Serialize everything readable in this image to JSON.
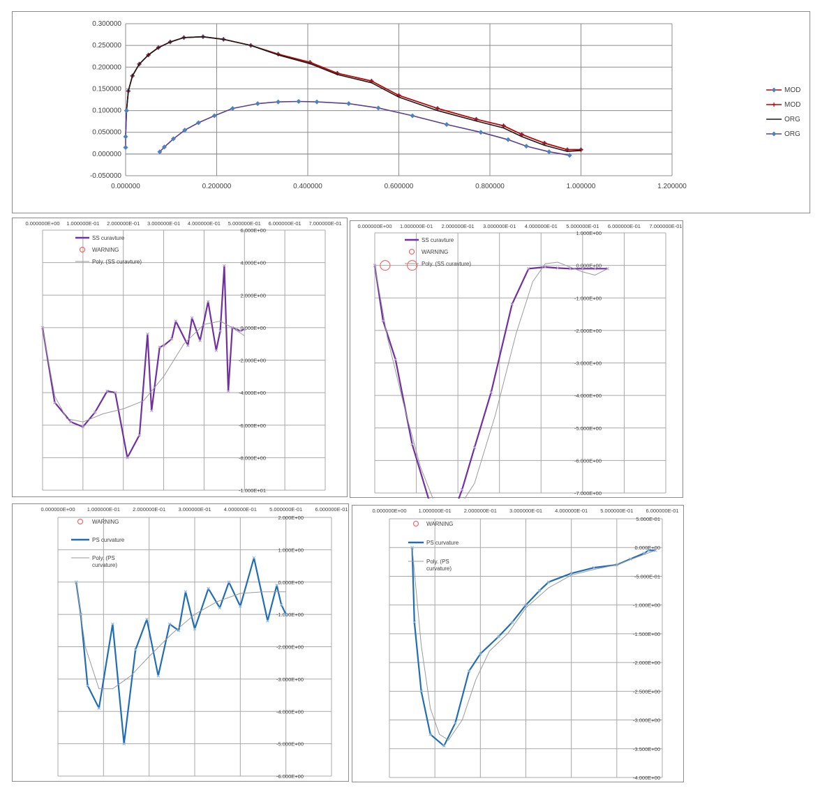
{
  "chart_data": [
    {
      "type": "line",
      "xlim": [
        0,
        1.2
      ],
      "ylim": [
        -0.05,
        0.3
      ],
      "x_ticks": [
        "0.000000",
        "0.200000",
        "0.400000",
        "0.600000",
        "0.800000",
        "1.000000",
        "1.200000"
      ],
      "y_ticks": [
        "0.300000",
        "0.250000",
        "0.200000",
        "0.150000",
        "0.100000",
        "0.050000",
        "0.000000",
        "-0.050000"
      ],
      "legend_position": "right",
      "grid": true,
      "series": [
        {
          "name": "MOD",
          "color": "#c00000",
          "marker": "diamond",
          "marker_color": "#4f81bd",
          "x": [
            0.002,
            0.006,
            0.015,
            0.03,
            0.05,
            0.072,
            0.098,
            0.128,
            0.17,
            0.215,
            0.275,
            0.335,
            0.405,
            0.465,
            0.54,
            0.6,
            0.685,
            0.77,
            0.83,
            0.87,
            0.92,
            0.97,
            1.0
          ],
          "y": [
            0.1,
            0.145,
            0.18,
            0.207,
            0.228,
            0.245,
            0.258,
            0.268,
            0.27,
            0.264,
            0.25,
            0.23,
            0.211,
            0.186,
            0.168,
            0.135,
            0.105,
            0.08,
            0.065,
            0.045,
            0.025,
            0.01,
            0.01
          ]
        },
        {
          "name": "MOD",
          "color": "#c00000",
          "marker": "plus",
          "marker_color": "#c00000",
          "x": [
            0.002,
            0.006,
            0.015,
            0.03,
            0.05,
            0.072,
            0.098,
            0.128,
            0.17,
            0.215,
            0.275,
            0.335,
            0.405,
            0.465,
            0.54,
            0.6,
            0.685,
            0.77,
            0.83,
            0.87,
            0.92,
            0.97,
            1.0
          ],
          "y": [
            0.1,
            0.145,
            0.18,
            0.207,
            0.228,
            0.245,
            0.258,
            0.268,
            0.27,
            0.264,
            0.25,
            0.23,
            0.211,
            0.186,
            0.168,
            0.135,
            0.105,
            0.08,
            0.065,
            0.045,
            0.025,
            0.01,
            0.01
          ]
        },
        {
          "name": "ORG",
          "color": "#1a1a1a",
          "marker": "none",
          "marker_color": "#1a1a1a",
          "x": [
            0.0,
            0.002,
            0.006,
            0.015,
            0.03,
            0.05,
            0.072,
            0.098,
            0.128,
            0.17,
            0.215,
            0.275,
            0.335,
            0.405,
            0.465,
            0.54,
            0.6,
            0.685,
            0.77,
            0.83,
            0.87,
            0.92,
            0.97,
            1.0
          ],
          "y": [
            0.04,
            0.1,
            0.145,
            0.18,
            0.207,
            0.228,
            0.245,
            0.258,
            0.268,
            0.27,
            0.264,
            0.25,
            0.228,
            0.208,
            0.183,
            0.164,
            0.131,
            0.1,
            0.076,
            0.06,
            0.04,
            0.02,
            0.006,
            0.008
          ]
        },
        {
          "name": "ORG",
          "color": "#5b3f8f",
          "marker": "diamond",
          "marker_color": "#4f81bd",
          "x": [
            0.075,
            0.085,
            0.105,
            0.13,
            0.16,
            0.195,
            0.235,
            0.29,
            0.335,
            0.38,
            0.42,
            0.49,
            0.555,
            0.63,
            0.705,
            0.78,
            0.84,
            0.88,
            0.93,
            0.975
          ],
          "y": [
            0.005,
            0.016,
            0.035,
            0.055,
            0.072,
            0.088,
            0.105,
            0.116,
            0.12,
            0.121,
            0.12,
            0.116,
            0.106,
            0.088,
            0.068,
            0.05,
            0.033,
            0.018,
            0.005,
            -0.003
          ]
        },
        {
          "name": "",
          "color": "#5b3f8f",
          "marker": "diamond",
          "marker_color": "#4f81bd",
          "x": [
            0.0,
            0.0,
            0.002
          ],
          "y": [
            0.015,
            0.04,
            0.1
          ]
        }
      ]
    },
    {
      "type": "line",
      "xlim": [
        0,
        0.7
      ],
      "ylim": [
        -10,
        6
      ],
      "x_axis_position": "top",
      "y_axis_position": "right",
      "x_ticks": [
        "0.000000E+00",
        "1.000000E-01",
        "2.000000E-01",
        "3.000000E-01",
        "4.000000E-01",
        "5.000000E-01",
        "6.000000E-01",
        "7.000000E-01"
      ],
      "y_ticks": [
        "6.000E+00",
        "4.000E+00",
        "2.000E+00",
        "0.000E+00",
        "-2.000E+00",
        "-4.000E+00",
        "-6.000E+00",
        "-8.000E+00",
        "-1.000E+01"
      ],
      "legend_position": "top-left",
      "grid": true,
      "series": [
        {
          "name": "SS curavture",
          "color": "#7030a0",
          "x": [
            0.0,
            0.03,
            0.07,
            0.1,
            0.13,
            0.16,
            0.18,
            0.21,
            0.24,
            0.26,
            0.27,
            0.29,
            0.3,
            0.32,
            0.33,
            0.36,
            0.37,
            0.39,
            0.41,
            0.43,
            0.44,
            0.45,
            0.46,
            0.47,
            0.48,
            0.49,
            0.5
          ],
          "y": [
            0.0,
            -4.6,
            -5.8,
            -6.1,
            -5.2,
            -3.9,
            -4.0,
            -8.0,
            -6.6,
            -0.4,
            -5.1,
            -1.2,
            -1.1,
            -0.7,
            0.4,
            -1.1,
            0.6,
            -0.8,
            1.6,
            -1.4,
            -0.2,
            3.8,
            -3.9,
            0.0,
            -0.1,
            -0.2,
            -0.1
          ]
        },
        {
          "name": "WARNING",
          "color": "#ff4d4d",
          "marker_only": true,
          "x": [],
          "y": []
        },
        {
          "name": "Poly. (SS curavture)",
          "color": "#9a9a9a",
          "x": [
            0.0,
            0.03,
            0.06,
            0.1,
            0.15,
            0.2,
            0.25,
            0.3,
            0.35,
            0.4,
            0.44,
            0.47,
            0.5
          ],
          "y": [
            0.0,
            -4.2,
            -5.6,
            -5.8,
            -5.3,
            -5.0,
            -4.5,
            -3.0,
            -1.0,
            0.2,
            0.4,
            0.0,
            -0.5
          ]
        }
      ]
    },
    {
      "type": "line",
      "xlim": [
        0,
        0.7
      ],
      "ylim": [
        -7,
        1
      ],
      "x_axis_position": "top",
      "y_axis_position": "right",
      "x_ticks": [
        "0.000000E+00",
        "1.000000E-01",
        "2.000000E-01",
        "3.000000E-01",
        "4.000000E-01",
        "5.000000E-01",
        "6.000000E-01",
        "7.000000E-01"
      ],
      "y_ticks": [
        "1.000E+00",
        "0.000E+00",
        "-1.000E+00",
        "-2.000E+00",
        "-3.000E+00",
        "-4.000E+00",
        "-5.000E+00",
        "-6.000E+00",
        "-7.000E+00"
      ],
      "legend_position": "top-left",
      "grid": true,
      "series": [
        {
          "name": "SS curavture",
          "color": "#7030a0",
          "x": [
            0.0,
            0.02,
            0.05,
            0.09,
            0.13,
            0.165,
            0.185,
            0.21,
            0.24,
            0.28,
            0.33,
            0.37,
            0.41,
            0.44,
            0.47,
            0.5,
            0.53,
            0.56
          ],
          "y": [
            0.0,
            -1.7,
            -2.9,
            -5.5,
            -7.2,
            -7.85,
            -7.75,
            -6.9,
            -5.6,
            -3.9,
            -1.2,
            -0.1,
            -0.05,
            -0.08,
            -0.1,
            -0.1,
            -0.1,
            -0.1
          ]
        },
        {
          "name": "WARNING",
          "color": "#ff4d4d",
          "marker_only": true,
          "x": [
            0.025,
            0.09
          ],
          "y": [
            0.0,
            0.0
          ]
        },
        {
          "name": "Poly. (SS curavture)",
          "color": "#9a9a9a",
          "x": [
            0.0,
            0.03,
            0.07,
            0.11,
            0.15,
            0.19,
            0.24,
            0.29,
            0.34,
            0.38,
            0.41,
            0.44,
            0.47,
            0.5,
            0.53,
            0.56
          ],
          "y": [
            0.0,
            -2.2,
            -4.3,
            -6.2,
            -7.5,
            -7.7,
            -6.7,
            -4.6,
            -2.1,
            -0.5,
            0.05,
            0.1,
            -0.05,
            -0.2,
            -0.3,
            -0.1
          ]
        }
      ]
    },
    {
      "type": "line",
      "xlim": [
        0,
        0.6
      ],
      "ylim": [
        -6,
        2
      ],
      "x_axis_position": "top",
      "y_axis_position": "right",
      "x_ticks": [
        "0.000000E+00",
        "1.000000E-01",
        "2.000000E-01",
        "3.000000E-01",
        "4.000000E-01",
        "5.000000E-01",
        "6.000000E-01"
      ],
      "y_ticks": [
        "2.000E+00",
        "1.000E+00",
        "0.000E+00",
        "-1.000E+00",
        "-2.000E+00",
        "-3.000E+00",
        "-4.000E+00",
        "-5.000E+00",
        "-6.000E+00"
      ],
      "legend_position": "top-left",
      "grid": true,
      "series": [
        {
          "name": "WARNING",
          "color": "#ff4d4d",
          "marker_only": true,
          "x": [],
          "y": []
        },
        {
          "name": "PS curvature",
          "color": "#1f6db5",
          "marker_color": "#8fb9e0",
          "x": [
            0.04,
            0.05,
            0.065,
            0.09,
            0.12,
            0.145,
            0.17,
            0.195,
            0.22,
            0.245,
            0.265,
            0.28,
            0.3,
            0.33,
            0.355,
            0.375,
            0.4,
            0.43,
            0.46,
            0.48,
            0.49,
            0.5
          ],
          "y": [
            0.0,
            -1.0,
            -3.2,
            -3.9,
            -1.3,
            -5.0,
            -2.1,
            -1.15,
            -2.9,
            -1.3,
            -1.5,
            -0.3,
            -1.45,
            -0.2,
            -0.8,
            0.0,
            -0.75,
            0.75,
            -1.2,
            -0.1,
            -0.7,
            -1.0
          ]
        },
        {
          "name": "Poly. (PS curvature)",
          "color": "#9a9a9a",
          "x": [
            0.04,
            0.06,
            0.09,
            0.12,
            0.16,
            0.2,
            0.25,
            0.3,
            0.35,
            0.4,
            0.45,
            0.5
          ],
          "y": [
            0.0,
            -2.0,
            -3.3,
            -3.3,
            -2.9,
            -2.3,
            -1.6,
            -1.0,
            -0.6,
            -0.35,
            -0.3,
            -0.3
          ]
        }
      ]
    },
    {
      "type": "line",
      "xlim": [
        0,
        0.6
      ],
      "ylim": [
        -4,
        0.5
      ],
      "x_axis_position": "top",
      "y_axis_position": "right",
      "x_ticks": [
        "0.000000E+00",
        "1.000000E-01",
        "2.000000E-01",
        "3.000000E-01",
        "4.000000E-01",
        "5.000000E-01",
        "6.000000E-01"
      ],
      "y_ticks": [
        "5.000E-01",
        "0.000E+00",
        "-5.000E-01",
        "-1.000E+00",
        "-1.500E+00",
        "-2.000E+00",
        "-2.500E+00",
        "-3.000E+00",
        "-3.500E+00",
        "-4.000E+00"
      ],
      "legend_position": "top-left",
      "grid": true,
      "series": [
        {
          "name": "WARNING",
          "color": "#ff4d4d",
          "marker_only": true,
          "x": [],
          "y": []
        },
        {
          "name": "PS curvature",
          "color": "#1f6db5",
          "marker_color": "#8fb9e0",
          "x": [
            0.05,
            0.055,
            0.07,
            0.09,
            0.12,
            0.145,
            0.175,
            0.2,
            0.24,
            0.27,
            0.3,
            0.33,
            0.35,
            0.4,
            0.45,
            0.5,
            0.53,
            0.56,
            0.57,
            0.585
          ],
          "y": [
            0.0,
            -1.3,
            -2.5,
            -3.25,
            -3.45,
            -3.05,
            -2.15,
            -1.85,
            -1.55,
            -1.3,
            -1.0,
            -0.75,
            -0.6,
            -0.45,
            -0.35,
            -0.3,
            -0.2,
            -0.1,
            -0.05,
            -0.05
          ]
        },
        {
          "name": "Poly. (PS curvature)",
          "color": "#9a9a9a",
          "x": [
            0.05,
            0.07,
            0.09,
            0.11,
            0.13,
            0.16,
            0.19,
            0.22,
            0.26,
            0.3,
            0.35,
            0.4,
            0.45,
            0.5,
            0.55,
            0.585
          ],
          "y": [
            0.0,
            -1.7,
            -2.8,
            -3.25,
            -3.35,
            -3.0,
            -2.3,
            -1.8,
            -1.5,
            -1.05,
            -0.7,
            -0.48,
            -0.38,
            -0.3,
            -0.15,
            -0.05
          ]
        }
      ]
    }
  ]
}
